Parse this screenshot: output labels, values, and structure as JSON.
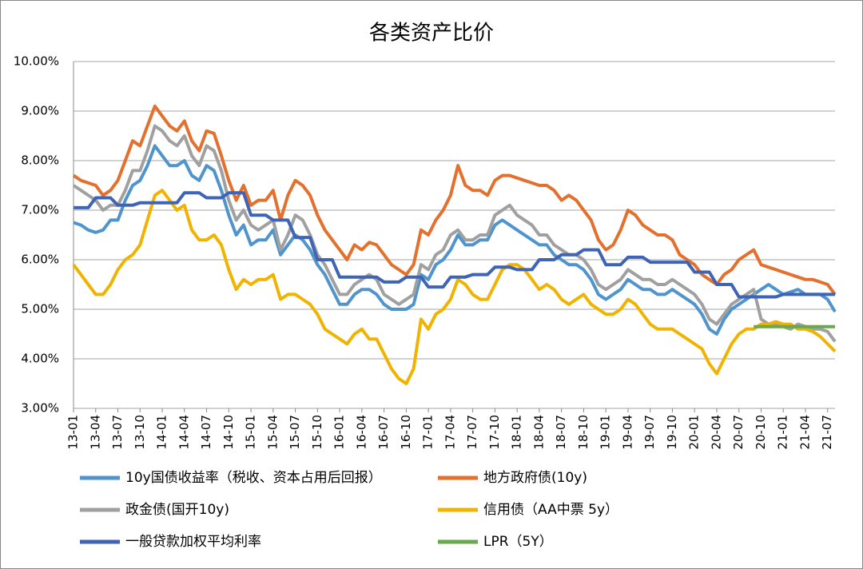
{
  "chart_data": {
    "type": "line",
    "title": "各类资产比价",
    "categories": [
      "13-01",
      null,
      null,
      "13-04",
      null,
      null,
      "13-07",
      null,
      null,
      "13-10",
      null,
      null,
      "14-01",
      null,
      null,
      "14-04",
      null,
      null,
      "14-07",
      null,
      null,
      "14-10",
      null,
      null,
      "15-01",
      null,
      null,
      "15-04",
      null,
      null,
      "15-07",
      null,
      null,
      "15-10",
      null,
      null,
      "16-01",
      null,
      null,
      "16-04",
      null,
      null,
      "16-07",
      null,
      null,
      "16-10",
      null,
      null,
      "17-01",
      null,
      null,
      "17-04",
      null,
      null,
      "17-07",
      null,
      null,
      "17-10",
      null,
      null,
      "18-01",
      null,
      null,
      "18-04",
      null,
      null,
      "18-07",
      null,
      null,
      "18-10",
      null,
      null,
      "19-01",
      null,
      null,
      "19-04",
      null,
      null,
      "19-07",
      null,
      null,
      "19-10",
      null,
      null,
      "20-01",
      null,
      null,
      "20-04",
      null,
      null,
      "20-07",
      null,
      null,
      "20-10",
      null,
      null,
      "21-01",
      null,
      null,
      "21-04",
      null,
      null,
      "21-07",
      null
    ],
    "ylim": [
      3,
      10
    ],
    "yticks": [
      {
        "value": 3,
        "label": "3.00%"
      },
      {
        "value": 4,
        "label": "4.00%"
      },
      {
        "value": 5,
        "label": "5.00%"
      },
      {
        "value": 6,
        "label": "6.00%"
      },
      {
        "value": 7,
        "label": "7.00%"
      },
      {
        "value": 8,
        "label": "8.00%"
      },
      {
        "value": 9,
        "label": "9.00%"
      },
      {
        "value": 10,
        "label": "10.00%"
      }
    ],
    "grid": true,
    "legend": "bottom",
    "series": [
      {
        "name": "10y国债收益率（税收、资本占用后回报）",
        "color": "#4f94cd",
        "values": [
          6.75,
          6.7,
          6.6,
          6.55,
          6.6,
          6.8,
          6.8,
          7.2,
          7.5,
          7.6,
          7.9,
          8.3,
          8.1,
          7.9,
          7.9,
          8.0,
          7.7,
          7.6,
          7.9,
          7.8,
          7.4,
          6.9,
          6.5,
          6.7,
          6.3,
          6.4,
          6.4,
          6.6,
          6.1,
          6.3,
          6.5,
          6.4,
          6.2,
          5.9,
          5.7,
          5.4,
          5.1,
          5.1,
          5.3,
          5.4,
          5.4,
          5.3,
          5.1,
          5.0,
          5.0,
          5.0,
          5.1,
          5.7,
          5.6,
          5.9,
          6.0,
          6.2,
          6.5,
          6.3,
          6.3,
          6.4,
          6.4,
          6.7,
          6.8,
          6.7,
          6.6,
          6.5,
          6.4,
          6.3,
          6.3,
          6.1,
          6.0,
          5.9,
          5.9,
          5.8,
          5.6,
          5.3,
          5.2,
          5.3,
          5.4,
          5.6,
          5.5,
          5.4,
          5.4,
          5.3,
          5.3,
          5.4,
          5.3,
          5.2,
          5.1,
          4.9,
          4.6,
          4.5,
          4.8,
          5.0,
          5.1,
          5.2,
          5.3,
          5.4,
          5.5,
          5.4,
          5.3,
          5.35,
          5.4,
          5.3,
          5.3,
          5.3,
          5.2,
          4.95
        ]
      },
      {
        "name": "地方政府债(10y)",
        "color": "#e3702d",
        "values": [
          7.7,
          7.6,
          7.55,
          7.5,
          7.3,
          7.4,
          7.6,
          8.0,
          8.4,
          8.3,
          8.7,
          9.1,
          8.9,
          8.7,
          8.6,
          8.8,
          8.4,
          8.2,
          8.6,
          8.55,
          8.1,
          7.6,
          7.2,
          7.5,
          7.1,
          7.2,
          7.2,
          7.4,
          6.8,
          7.3,
          7.6,
          7.5,
          7.3,
          6.9,
          6.6,
          6.4,
          6.2,
          6.0,
          6.3,
          6.2,
          6.35,
          6.3,
          6.1,
          5.9,
          5.8,
          5.7,
          5.9,
          6.6,
          6.5,
          6.8,
          7.0,
          7.3,
          7.9,
          7.5,
          7.4,
          7.4,
          7.3,
          7.6,
          7.7,
          7.7,
          7.65,
          7.6,
          7.55,
          7.5,
          7.5,
          7.4,
          7.2,
          7.3,
          7.2,
          7.0,
          6.8,
          6.4,
          6.2,
          6.3,
          6.6,
          7.0,
          6.9,
          6.7,
          6.6,
          6.5,
          6.5,
          6.4,
          6.1,
          6.0,
          5.9,
          5.7,
          5.6,
          5.5,
          5.7,
          5.8,
          6.0,
          6.1,
          6.2,
          5.9,
          5.85,
          5.8,
          5.75,
          5.7,
          5.65,
          5.6,
          5.6,
          5.55,
          5.5,
          5.3
        ]
      },
      {
        "name": "政金债(国开10y)",
        "color": "#a0a0a0",
        "values": [
          7.5,
          7.4,
          7.3,
          7.2,
          7.0,
          7.1,
          7.1,
          7.4,
          7.8,
          7.8,
          8.2,
          8.7,
          8.6,
          8.4,
          8.3,
          8.5,
          8.1,
          7.9,
          8.3,
          8.2,
          7.8,
          7.2,
          6.8,
          7.0,
          6.7,
          6.6,
          6.7,
          6.8,
          6.2,
          6.5,
          6.9,
          6.8,
          6.5,
          6.1,
          5.9,
          5.6,
          5.3,
          5.3,
          5.5,
          5.6,
          5.7,
          5.6,
          5.3,
          5.2,
          5.1,
          5.2,
          5.3,
          5.9,
          5.8,
          6.1,
          6.2,
          6.5,
          6.6,
          6.4,
          6.4,
          6.5,
          6.5,
          6.9,
          7.0,
          7.1,
          6.9,
          6.8,
          6.7,
          6.5,
          6.5,
          6.3,
          6.2,
          6.1,
          6.1,
          6.0,
          5.8,
          5.5,
          5.4,
          5.5,
          5.6,
          5.8,
          5.7,
          5.6,
          5.6,
          5.5,
          5.5,
          5.6,
          5.5,
          5.4,
          5.3,
          5.1,
          4.8,
          4.7,
          4.9,
          5.1,
          5.2,
          5.3,
          5.4,
          4.8,
          4.7,
          4.7,
          4.65,
          4.6,
          4.7,
          4.65,
          4.6,
          4.6,
          4.55,
          4.35
        ]
      },
      {
        "name": "信用债（AA中票 5y）",
        "color": "#f0b400",
        "values": [
          5.9,
          5.7,
          5.5,
          5.3,
          5.3,
          5.5,
          5.8,
          6.0,
          6.1,
          6.3,
          6.8,
          7.3,
          7.4,
          7.2,
          7.0,
          7.1,
          6.6,
          6.4,
          6.4,
          6.5,
          6.3,
          5.8,
          5.4,
          5.6,
          5.5,
          5.6,
          5.6,
          5.7,
          5.2,
          5.3,
          5.3,
          5.2,
          5.1,
          4.9,
          4.6,
          4.5,
          4.4,
          4.3,
          4.5,
          4.6,
          4.4,
          4.4,
          4.1,
          3.8,
          3.6,
          3.5,
          3.8,
          4.8,
          4.6,
          4.9,
          5.0,
          5.2,
          5.6,
          5.5,
          5.3,
          5.2,
          5.2,
          5.5,
          5.8,
          5.9,
          5.9,
          5.8,
          5.6,
          5.4,
          5.5,
          5.4,
          5.2,
          5.1,
          5.2,
          5.3,
          5.1,
          5.0,
          4.9,
          4.9,
          5.0,
          5.2,
          5.1,
          4.9,
          4.7,
          4.6,
          4.6,
          4.6,
          4.5,
          4.4,
          4.3,
          4.2,
          3.9,
          3.7,
          4.0,
          4.3,
          4.5,
          4.6,
          4.6,
          4.7,
          4.7,
          4.75,
          4.7,
          4.7,
          4.6,
          4.6,
          4.55,
          4.45,
          4.3,
          4.15
        ]
      },
      {
        "name": "一般贷款加权平均利率",
        "color": "#3f63b5",
        "values": [
          7.05,
          7.05,
          7.05,
          7.25,
          7.25,
          7.25,
          7.1,
          7.1,
          7.1,
          7.15,
          7.15,
          7.15,
          7.15,
          7.15,
          7.15,
          7.35,
          7.35,
          7.35,
          7.25,
          7.25,
          7.25,
          7.35,
          7.35,
          7.35,
          6.9,
          6.9,
          6.9,
          6.8,
          6.8,
          6.8,
          6.45,
          6.45,
          6.45,
          6.0,
          6.0,
          6.0,
          5.65,
          5.65,
          5.65,
          5.65,
          5.65,
          5.65,
          5.55,
          5.55,
          5.55,
          5.65,
          5.65,
          5.65,
          5.45,
          5.45,
          5.45,
          5.65,
          5.65,
          5.65,
          5.7,
          5.7,
          5.7,
          5.85,
          5.85,
          5.85,
          5.8,
          5.8,
          5.8,
          6.0,
          6.0,
          6.0,
          6.1,
          6.1,
          6.1,
          6.2,
          6.2,
          6.2,
          5.9,
          5.9,
          5.9,
          6.05,
          6.05,
          6.05,
          5.95,
          5.95,
          5.95,
          5.95,
          5.95,
          5.95,
          5.75,
          5.75,
          5.75,
          5.5,
          5.5,
          5.5,
          5.25,
          5.25,
          5.25,
          5.25,
          5.25,
          5.25,
          5.3,
          5.3,
          5.3,
          5.3,
          5.3,
          5.3,
          5.3,
          5.3
        ]
      },
      {
        "name": "LPR（5Y）",
        "color": "#6aa84f",
        "values": [
          null,
          null,
          null,
          null,
          null,
          null,
          null,
          null,
          null,
          null,
          null,
          null,
          null,
          null,
          null,
          null,
          null,
          null,
          null,
          null,
          null,
          null,
          null,
          null,
          null,
          null,
          null,
          null,
          null,
          null,
          null,
          null,
          null,
          null,
          null,
          null,
          null,
          null,
          null,
          null,
          null,
          null,
          null,
          null,
          null,
          null,
          null,
          null,
          null,
          null,
          null,
          null,
          null,
          null,
          null,
          null,
          null,
          null,
          null,
          null,
          null,
          null,
          null,
          null,
          null,
          null,
          null,
          null,
          null,
          null,
          null,
          null,
          null,
          null,
          null,
          null,
          null,
          null,
          null,
          null,
          null,
          null,
          null,
          null,
          null,
          null,
          null,
          null,
          null,
          null,
          null,
          null,
          4.65,
          4.65,
          4.65,
          4.65,
          4.65,
          4.65,
          4.65,
          4.65,
          4.65,
          4.65,
          4.65,
          4.65
        ]
      }
    ]
  }
}
